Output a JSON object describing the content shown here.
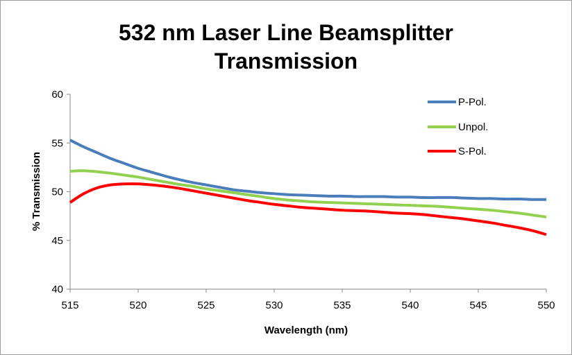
{
  "chart_data": {
    "type": "line",
    "title_lines": [
      "532 nm Laser Line Beamsplitter",
      "Transmission"
    ],
    "xlabel": "Wavelength (nm)",
    "ylabel": "% Transmission",
    "xlim": [
      515,
      550
    ],
    "ylim": [
      40,
      60
    ],
    "xticks": [
      "515",
      "520",
      "525",
      "530",
      "535",
      "540",
      "545",
      "550"
    ],
    "yticks": [
      "40",
      "45",
      "50",
      "55",
      "60"
    ],
    "legend_position": "top-right",
    "grid": false,
    "series": [
      {
        "name": "P-Pol.",
        "color": "#4a7ebb",
        "points": [
          [
            515,
            55.3
          ],
          [
            516,
            54.6
          ],
          [
            517,
            54.0
          ],
          [
            518,
            53.4
          ],
          [
            519,
            52.9
          ],
          [
            520,
            52.4
          ],
          [
            521,
            52.0
          ],
          [
            522,
            51.6
          ],
          [
            523,
            51.25
          ],
          [
            524,
            50.95
          ],
          [
            525,
            50.7
          ],
          [
            526,
            50.45
          ],
          [
            527,
            50.2
          ],
          [
            528,
            50.05
          ],
          [
            529,
            49.9
          ],
          [
            530,
            49.8
          ],
          [
            531,
            49.7
          ],
          [
            532,
            49.65
          ],
          [
            533,
            49.6
          ],
          [
            534,
            49.55
          ],
          [
            535,
            49.55
          ],
          [
            536,
            49.5
          ],
          [
            537,
            49.5
          ],
          [
            538,
            49.5
          ],
          [
            539,
            49.45
          ],
          [
            540,
            49.45
          ],
          [
            541,
            49.4
          ],
          [
            542,
            49.4
          ],
          [
            543,
            49.4
          ],
          [
            544,
            49.35
          ],
          [
            545,
            49.3
          ],
          [
            546,
            49.3
          ],
          [
            547,
            49.25
          ],
          [
            548,
            49.25
          ],
          [
            549,
            49.2
          ],
          [
            550,
            49.2
          ]
        ]
      },
      {
        "name": "Unpol.",
        "color": "#92d050",
        "points": [
          [
            515,
            52.1
          ],
          [
            516,
            52.15
          ],
          [
            517,
            52.05
          ],
          [
            518,
            51.9
          ],
          [
            519,
            51.7
          ],
          [
            520,
            51.5
          ],
          [
            521,
            51.25
          ],
          [
            522,
            51.0
          ],
          [
            523,
            50.75
          ],
          [
            524,
            50.55
          ],
          [
            525,
            50.3
          ],
          [
            526,
            50.1
          ],
          [
            527,
            49.9
          ],
          [
            528,
            49.7
          ],
          [
            529,
            49.5
          ],
          [
            530,
            49.3
          ],
          [
            531,
            49.15
          ],
          [
            532,
            49.05
          ],
          [
            533,
            48.95
          ],
          [
            534,
            48.9
          ],
          [
            535,
            48.85
          ],
          [
            536,
            48.8
          ],
          [
            537,
            48.75
          ],
          [
            538,
            48.7
          ],
          [
            539,
            48.65
          ],
          [
            540,
            48.6
          ],
          [
            541,
            48.55
          ],
          [
            542,
            48.5
          ],
          [
            543,
            48.4
          ],
          [
            544,
            48.3
          ],
          [
            545,
            48.2
          ],
          [
            546,
            48.1
          ],
          [
            547,
            47.95
          ],
          [
            548,
            47.8
          ],
          [
            549,
            47.6
          ],
          [
            550,
            47.4
          ]
        ]
      },
      {
        "name": "S-Pol.",
        "color": "#ff0000",
        "points": [
          [
            515,
            48.9
          ],
          [
            516,
            49.8
          ],
          [
            517,
            50.4
          ],
          [
            518,
            50.7
          ],
          [
            519,
            50.8
          ],
          [
            520,
            50.8
          ],
          [
            521,
            50.7
          ],
          [
            522,
            50.55
          ],
          [
            523,
            50.35
          ],
          [
            524,
            50.1
          ],
          [
            525,
            49.85
          ],
          [
            526,
            49.6
          ],
          [
            527,
            49.35
          ],
          [
            528,
            49.1
          ],
          [
            529,
            48.9
          ],
          [
            530,
            48.7
          ],
          [
            531,
            48.55
          ],
          [
            532,
            48.4
          ],
          [
            533,
            48.3
          ],
          [
            534,
            48.2
          ],
          [
            535,
            48.1
          ],
          [
            536,
            48.05
          ],
          [
            537,
            48.0
          ],
          [
            538,
            47.9
          ],
          [
            539,
            47.8
          ],
          [
            540,
            47.75
          ],
          [
            541,
            47.65
          ],
          [
            542,
            47.5
          ],
          [
            543,
            47.35
          ],
          [
            544,
            47.2
          ],
          [
            545,
            47.0
          ],
          [
            546,
            46.8
          ],
          [
            547,
            46.55
          ],
          [
            548,
            46.3
          ],
          [
            549,
            46.0
          ],
          [
            550,
            45.6
          ]
        ]
      }
    ]
  }
}
